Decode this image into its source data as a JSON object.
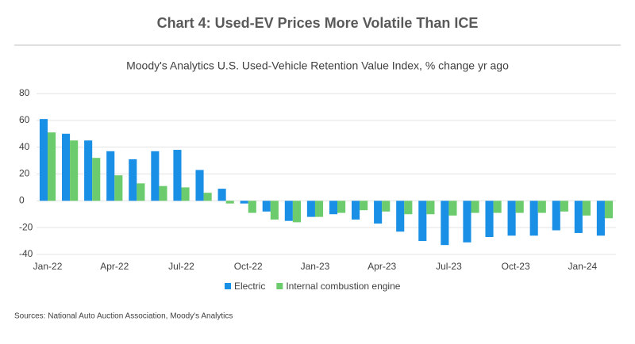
{
  "chart_data": {
    "type": "bar",
    "title": "Chart 4: Used-EV Prices More Volatile Than ICE",
    "subtitle": "Moody's Analytics U.S. Used-Vehicle Retention Value Index, % change yr ago",
    "source": "Sources: National Auto Auction Association, Moody's Analytics",
    "categories": [
      "Jan-22",
      null,
      null,
      "Apr-22",
      null,
      null,
      "Jul-22",
      null,
      null,
      "Oct-22",
      null,
      null,
      "Jan-23",
      null,
      null,
      "Apr-23",
      null,
      null,
      "Jul-23",
      null,
      null,
      "Oct-23",
      null,
      null,
      "Jan-24",
      null
    ],
    "series": [
      {
        "name": "Electric",
        "color": "#1a8fe6",
        "values": [
          61,
          50,
          45,
          37,
          31,
          37,
          38,
          23,
          9,
          -2,
          -8,
          -15,
          -12,
          -10,
          -14,
          -17,
          -23,
          -30,
          -33,
          -31,
          -27,
          -26,
          -26,
          -22,
          -24,
          -26
        ]
      },
      {
        "name": "Internal combustion engine",
        "color": "#6ccb6c",
        "values": [
          51,
          45,
          32,
          19,
          13,
          11,
          10,
          6,
          -2,
          -9,
          -14,
          -16,
          -12,
          -9,
          -7,
          -8,
          -10,
          -10,
          -11,
          -9,
          -9,
          -9,
          -9,
          -8,
          -11,
          -13
        ]
      }
    ],
    "ylim": [
      -40,
      80
    ],
    "yticks": [
      -40,
      -20,
      0,
      20,
      40,
      60,
      80
    ],
    "grid": true
  }
}
